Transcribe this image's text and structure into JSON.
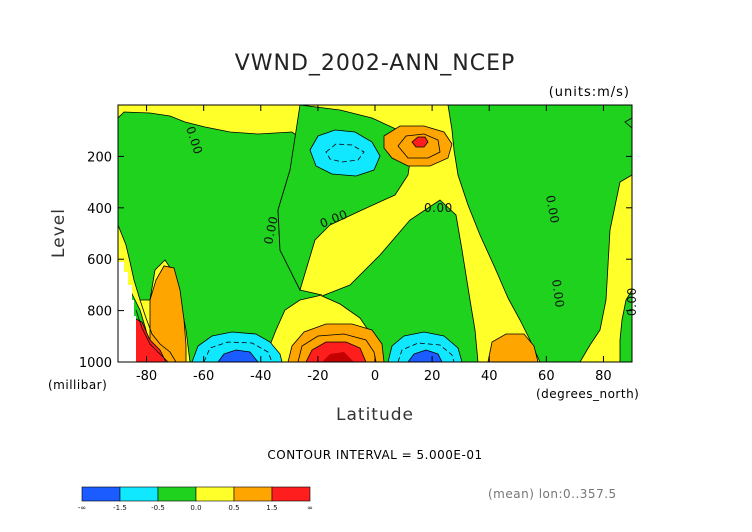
{
  "chart_data": {
    "type": "heatmap",
    "title": "VWND_2002-ANN_NCEP",
    "units_label": "(units:m/s)",
    "xlabel": "Latitude",
    "x_unit_label": "(degrees_north)",
    "ylabel": "Level",
    "y_unit_label": "(millibar)",
    "xlim": [
      -90,
      90
    ],
    "ylim": [
      1000,
      0
    ],
    "x_ticks": [
      -80,
      -60,
      -40,
      -20,
      0,
      20,
      40,
      60,
      80
    ],
    "y_ticks": [
      200,
      400,
      600,
      800,
      1000
    ],
    "contour_interval_label": "CONTOUR INTERVAL = 5.000E-01",
    "mean_label": "(mean) lon:0..357.5",
    "contour_label_text": "0.00",
    "colorbar": {
      "labels": [
        "-∞",
        "-1.5",
        "-0.5",
        "0.0",
        "0.5",
        "1.5",
        "∞"
      ],
      "colors": [
        "#1a5cff",
        "#10e8ff",
        "#1ed21e",
        "#ffff2a",
        "#ffa500",
        "#ff1e1e"
      ]
    },
    "colors": {
      "lt_neg1_5": "#1a5cff",
      "neg1_5_to_neg0_5": "#10e8ff",
      "neg0_5_to_0": "#1ed21e",
      "0_to_0_5": "#ffff2a",
      "0_5_to_1_5": "#ffa500",
      "gt_1_5": "#ff1e1e",
      "strongest": "#c40000"
    },
    "features": [
      {
        "label": "positive max",
        "x": 15,
        "y": 150,
        "value": 1.5
      },
      {
        "label": "negative min",
        "x": -12,
        "y": 170,
        "value": -1.0
      },
      {
        "label": "negative min",
        "x": -52,
        "y": 990,
        "value": -1.5
      },
      {
        "label": "negative min",
        "x": 18,
        "y": 990,
        "value": -1.5
      },
      {
        "label": "positive max",
        "x": -14,
        "y": 980,
        "value": 2.0
      },
      {
        "label": "positive max",
        "x": -84,
        "y": 990,
        "value": 2.0
      },
      {
        "label": "positive max",
        "x": 48,
        "y": 970,
        "value": 1.0
      }
    ]
  }
}
